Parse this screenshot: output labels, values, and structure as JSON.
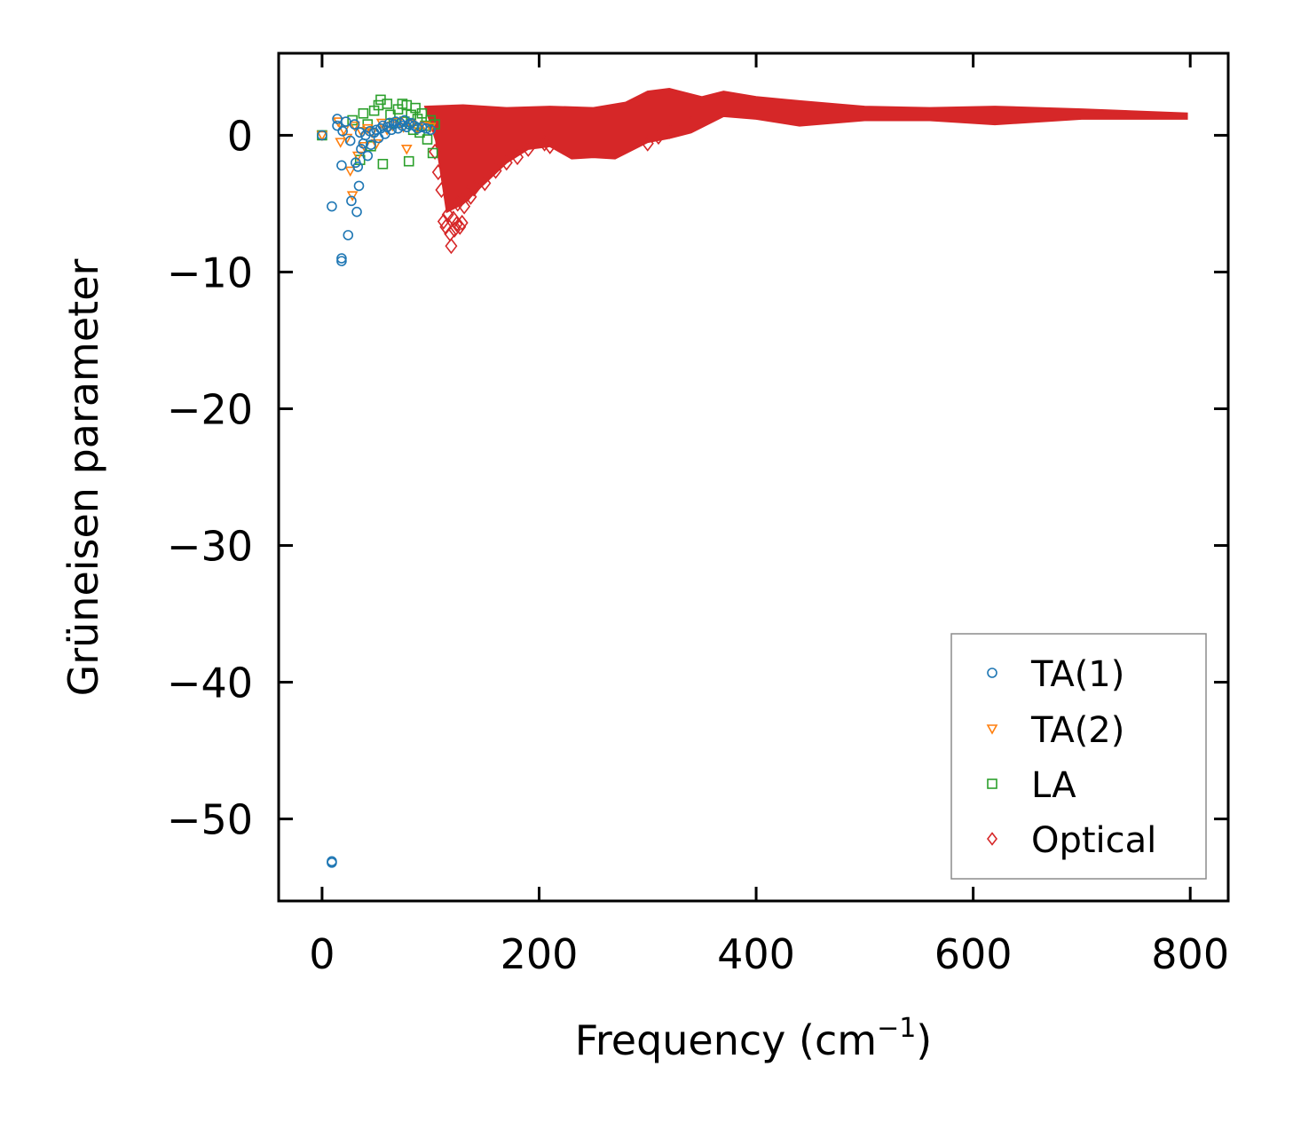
{
  "chart_data": {
    "type": "scatter",
    "title": "",
    "xlabel": "Frequency (cm",
    "xlabel_sup": "−1",
    "xlabel_close": ")",
    "ylabel": "Grüneisen parameter",
    "xlim": [
      -40,
      835
    ],
    "ylim": [
      -56,
      6
    ],
    "xticks": [
      0,
      200,
      400,
      600,
      800
    ],
    "xtick_labels": [
      "0",
      "200",
      "400",
      "600",
      "800"
    ],
    "yticks": [
      0,
      -10,
      -20,
      -30,
      -40,
      -50
    ],
    "ytick_labels": [
      "0",
      "−10",
      "−20",
      "−30",
      "−40",
      "−50"
    ],
    "grid": false,
    "legend_position": "lower-right",
    "series": [
      {
        "name": "TA(1)",
        "marker": "circle",
        "color": "#1f77b4",
        "points": [
          [
            0,
            0
          ],
          [
            9,
            -53.1
          ],
          [
            9,
            -53.2
          ],
          [
            9,
            -5.2
          ],
          [
            14,
            0.7
          ],
          [
            14,
            1.2
          ],
          [
            18,
            -2.2
          ],
          [
            18,
            -9.0
          ],
          [
            18,
            -9.2
          ],
          [
            19,
            0.3
          ],
          [
            22,
            1.0
          ],
          [
            24,
            -7.3
          ],
          [
            26,
            -0.4
          ],
          [
            27,
            -4.8
          ],
          [
            30,
            0.8
          ],
          [
            31,
            -2.0
          ],
          [
            32,
            -5.6
          ],
          [
            33,
            -2.3
          ],
          [
            34,
            -3.7
          ],
          [
            35,
            0.2
          ],
          [
            36,
            -1.0
          ],
          [
            38,
            -0.6
          ],
          [
            40,
            0.0
          ],
          [
            42,
            -1.5
          ],
          [
            44,
            0.3
          ],
          [
            45,
            -0.7
          ],
          [
            48,
            0.2
          ],
          [
            50,
            0.4
          ],
          [
            52,
            -0.2
          ],
          [
            54,
            0.5
          ],
          [
            56,
            0.7
          ],
          [
            58,
            0.1
          ],
          [
            60,
            0.6
          ],
          [
            62,
            0.9
          ],
          [
            64,
            0.4
          ],
          [
            66,
            0.8
          ],
          [
            68,
            1.0
          ],
          [
            70,
            0.5
          ],
          [
            72,
            0.9
          ],
          [
            74,
            0.7
          ],
          [
            76,
            1.1
          ],
          [
            78,
            0.6
          ],
          [
            80,
            0.8
          ],
          [
            82,
            0.9
          ],
          [
            85,
            0.7
          ],
          [
            88,
            0.5
          ],
          [
            92,
            0.6
          ],
          [
            96,
            0.5
          ],
          [
            100,
            0.4
          ]
        ]
      },
      {
        "name": "TA(2)",
        "marker": "triangle-down",
        "color": "#ff7f0e",
        "points": [
          [
            0,
            0
          ],
          [
            15,
            1.0
          ],
          [
            17,
            -0.5
          ],
          [
            20,
            0.4
          ],
          [
            23,
            -0.2
          ],
          [
            26,
            -2.6
          ],
          [
            28,
            -4.4
          ],
          [
            30,
            0.7
          ],
          [
            33,
            -1.5
          ],
          [
            36,
            0.3
          ],
          [
            39,
            -0.8
          ],
          [
            42,
            0.5
          ],
          [
            46,
            0.2
          ],
          [
            50,
            -0.6
          ],
          [
            55,
            0.9
          ],
          [
            60,
            0.4
          ],
          [
            65,
            0.7
          ],
          [
            70,
            1.0
          ],
          [
            75,
            0.6
          ],
          [
            78,
            -1.0
          ],
          [
            82,
            0.8
          ],
          [
            88,
            0.5
          ],
          [
            95,
            0.7
          ],
          [
            100,
            0.6
          ]
        ]
      },
      {
        "name": "LA",
        "marker": "square",
        "color": "#2ca02c",
        "points": [
          [
            0,
            0
          ],
          [
            28,
            1.1
          ],
          [
            35,
            -1.8
          ],
          [
            38,
            1.6
          ],
          [
            42,
            0.8
          ],
          [
            45,
            -0.8
          ],
          [
            48,
            1.8
          ],
          [
            52,
            2.2
          ],
          [
            54,
            2.6
          ],
          [
            56,
            -2.1
          ],
          [
            60,
            2.3
          ],
          [
            63,
            1.5
          ],
          [
            66,
            0.9
          ],
          [
            70,
            1.9
          ],
          [
            74,
            2.3
          ],
          [
            76,
            1.0
          ],
          [
            78,
            2.2
          ],
          [
            80,
            -1.9
          ],
          [
            82,
            1.5
          ],
          [
            84,
            0.4
          ],
          [
            86,
            2.0
          ],
          [
            88,
            1.2
          ],
          [
            90,
            0.2
          ],
          [
            92,
            1.6
          ],
          [
            95,
            0.7
          ],
          [
            97,
            -0.3
          ],
          [
            100,
            1.1
          ],
          [
            102,
            -1.3
          ],
          [
            104,
            0.8
          ]
        ]
      },
      {
        "name": "Optical",
        "marker": "diamond",
        "color": "#d62728",
        "band_upper": [
          [
            95,
            2.1
          ],
          [
            130,
            2.2
          ],
          [
            170,
            2.0
          ],
          [
            210,
            2.1
          ],
          [
            250,
            2.0
          ],
          [
            280,
            2.4
          ],
          [
            300,
            3.2
          ],
          [
            320,
            3.4
          ],
          [
            350,
            2.8
          ],
          [
            370,
            3.2
          ],
          [
            400,
            2.8
          ],
          [
            440,
            2.5
          ],
          [
            500,
            2.1
          ],
          [
            560,
            2.0
          ],
          [
            620,
            2.1
          ],
          [
            700,
            1.9
          ],
          [
            797,
            1.6
          ]
        ],
        "band_lower": [
          [
            797,
            1.2
          ],
          [
            700,
            1.2
          ],
          [
            620,
            0.8
          ],
          [
            560,
            1.1
          ],
          [
            500,
            1.1
          ],
          [
            440,
            0.7
          ],
          [
            400,
            1.2
          ],
          [
            370,
            1.4
          ],
          [
            340,
            0.2
          ],
          [
            320,
            -0.2
          ],
          [
            300,
            -0.5
          ],
          [
            270,
            -1.7
          ],
          [
            250,
            -1.6
          ],
          [
            230,
            -1.7
          ],
          [
            210,
            -0.8
          ],
          [
            190,
            -1.0
          ],
          [
            170,
            -2.0
          ],
          [
            150,
            -3.5
          ],
          [
            130,
            -5.0
          ],
          [
            115,
            -5.6
          ],
          [
            105,
            -0.4
          ]
        ],
        "points": [
          [
            104,
            -1.2
          ],
          [
            107,
            -2.7
          ],
          [
            110,
            -4.0
          ],
          [
            112,
            -6.3
          ],
          [
            114,
            -6.7
          ],
          [
            116,
            -5.8
          ],
          [
            118,
            -7.2
          ],
          [
            119,
            -8.1
          ],
          [
            121,
            -6.1
          ],
          [
            122,
            -6.9
          ],
          [
            124,
            -6.5
          ],
          [
            125,
            -5.0
          ],
          [
            127,
            -6.7
          ],
          [
            129,
            -6.4
          ],
          [
            131,
            -5.2
          ],
          [
            134,
            -4.3
          ],
          [
            137,
            -4.5
          ],
          [
            140,
            -3.9
          ],
          [
            150,
            -3.5
          ],
          [
            160,
            -2.6
          ],
          [
            170,
            -2.0
          ],
          [
            180,
            -1.6
          ],
          [
            190,
            -1.0
          ],
          [
            205,
            -0.6
          ],
          [
            210,
            -0.8
          ],
          [
            300,
            -0.6
          ],
          [
            310,
            -0.1
          ],
          [
            320,
            0.3
          ],
          [
            340,
            0.8
          ]
        ]
      }
    ]
  }
}
